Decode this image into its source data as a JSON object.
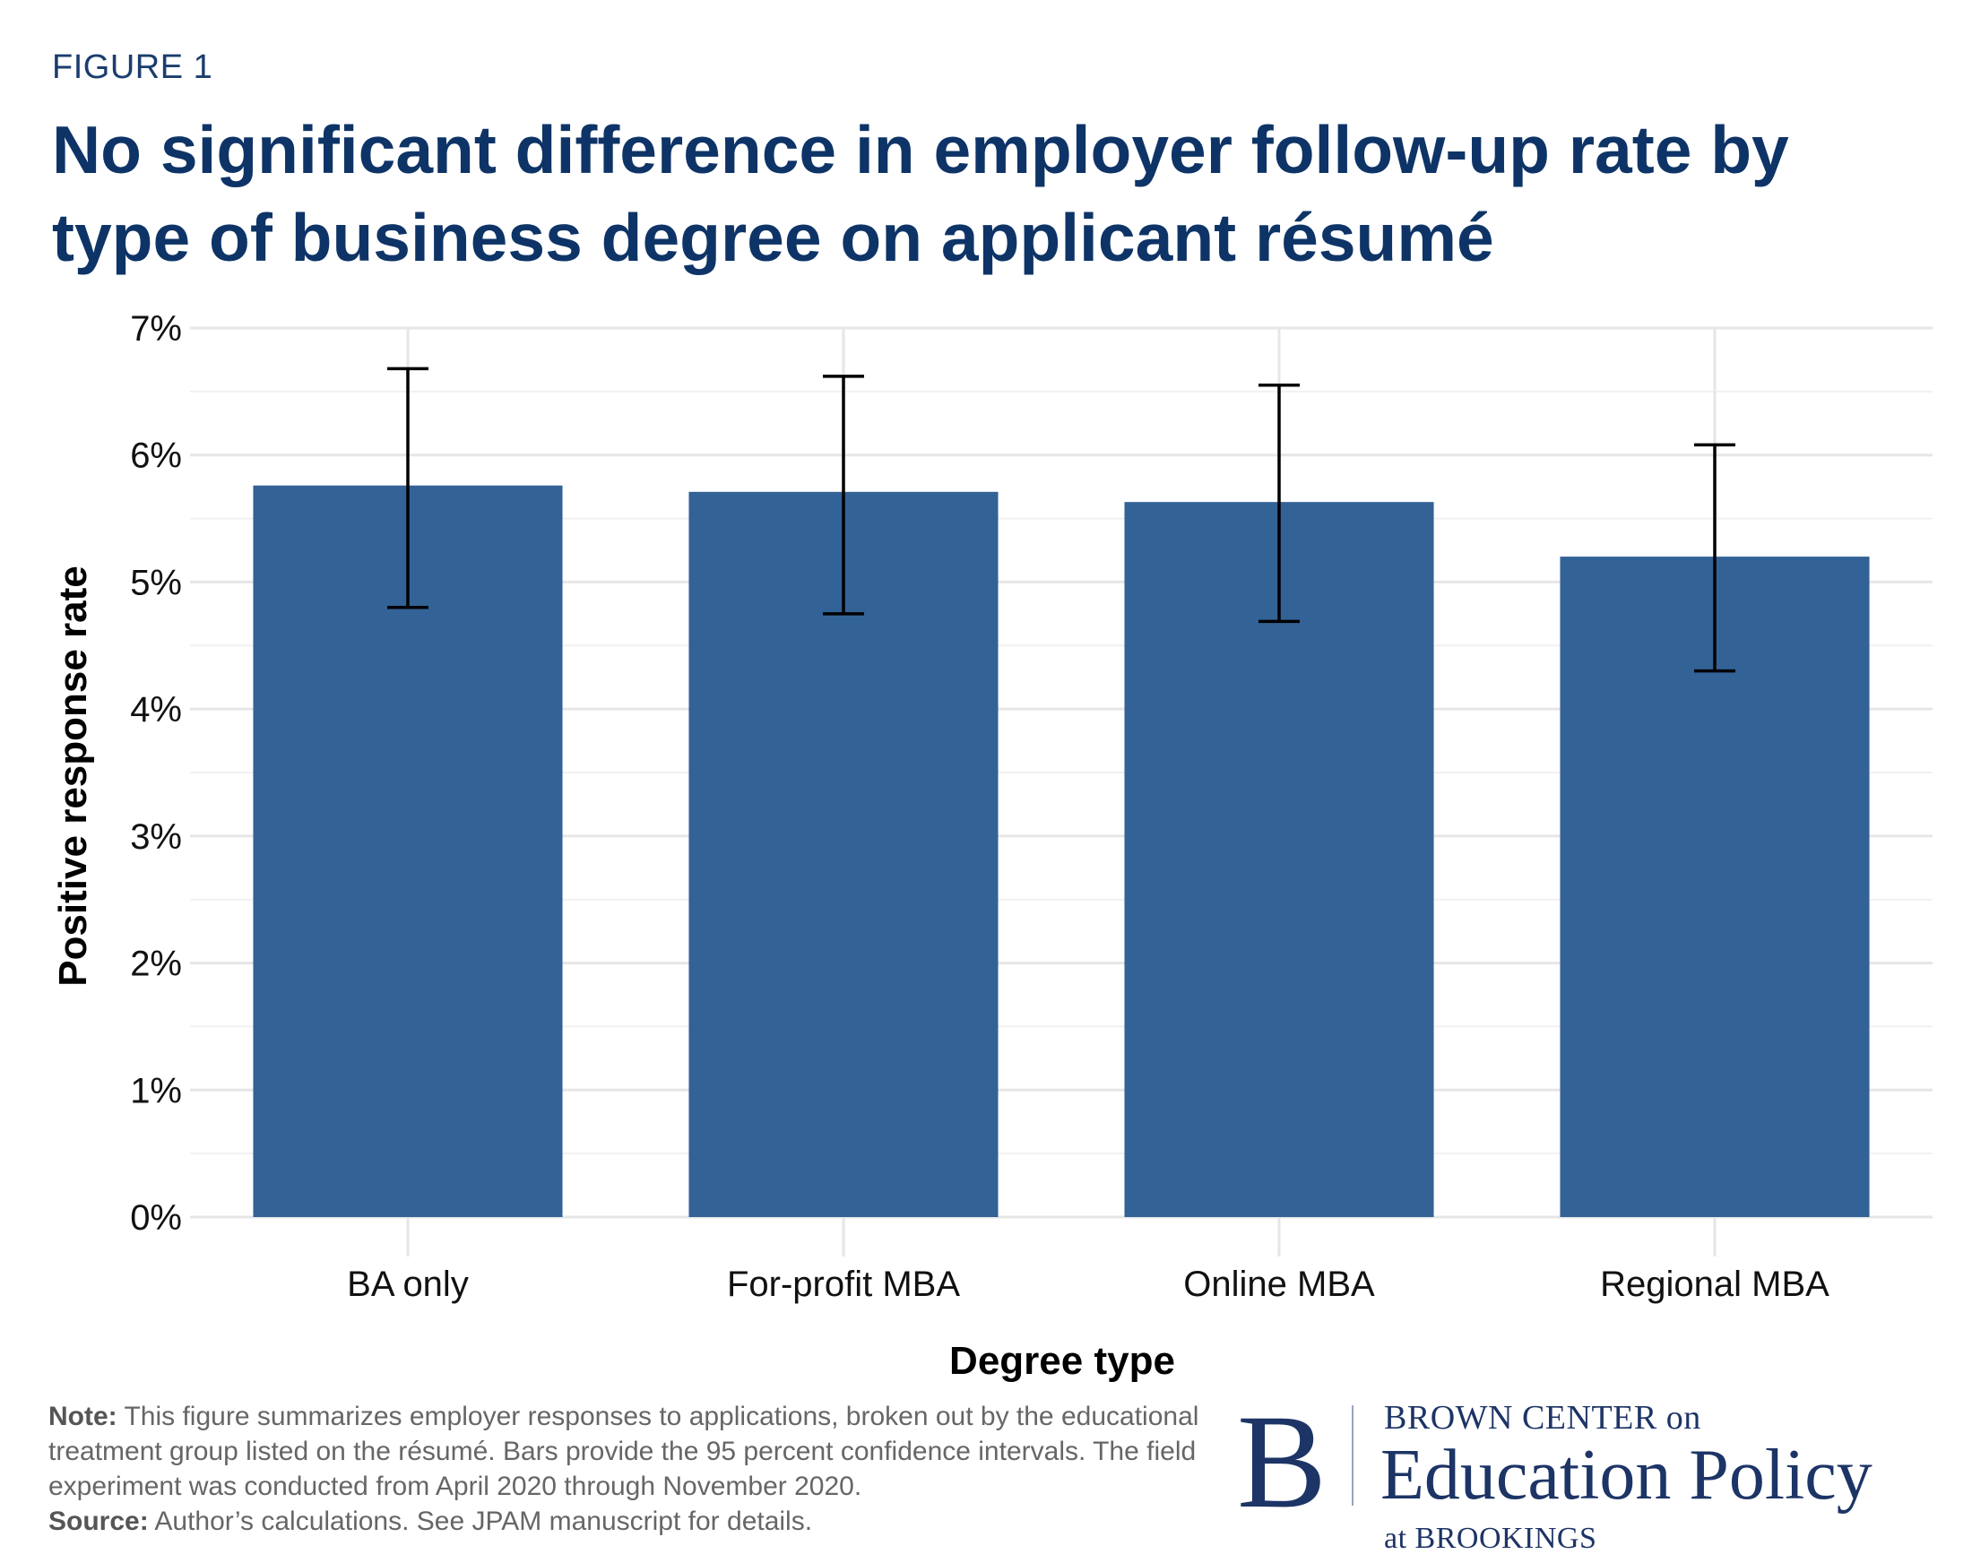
{
  "figure_label": "FIGURE 1",
  "chart_data": {
    "type": "bar",
    "title": "No significant difference in employer follow-up rate by type of business degree on applicant résumé",
    "xlabel": "Degree type",
    "ylabel": "Positive response rate",
    "categories": [
      "BA only",
      "For-profit MBA",
      "Online MBA",
      "Regional MBA"
    ],
    "values": [
      5.76,
      5.71,
      5.63,
      5.2
    ],
    "error_low": [
      4.8,
      4.75,
      4.69,
      4.3
    ],
    "error_high": [
      6.68,
      6.62,
      6.55,
      6.08
    ],
    "ylim": [
      0,
      7
    ],
    "yticks": [
      0,
      1,
      2,
      3,
      4,
      5,
      6,
      7
    ],
    "ytick_labels": [
      "0%",
      "1%",
      "2%",
      "3%",
      "4%",
      "5%",
      "6%",
      "7%"
    ],
    "grid": true,
    "bar_color": "#336296",
    "gridline_color": "#e6e6e6",
    "errorbar_color": "#000000"
  },
  "notes": {
    "note_label": "Note:",
    "note_text": "This figure summarizes employer responses to applications, broken out by the educational treatment group listed on the résumé. Bars provide the 95 percent confidence intervals. The field experiment was conducted from April 2020 through November 2020.",
    "source_label": "Source:",
    "source_text": "Author’s calculations. See JPAM manuscript for details."
  },
  "logo": {
    "letter": "B",
    "line1": "BROWN CENTER on",
    "line2": "Education Policy",
    "line3": "at BROOKINGS",
    "color": "#1d3466"
  }
}
